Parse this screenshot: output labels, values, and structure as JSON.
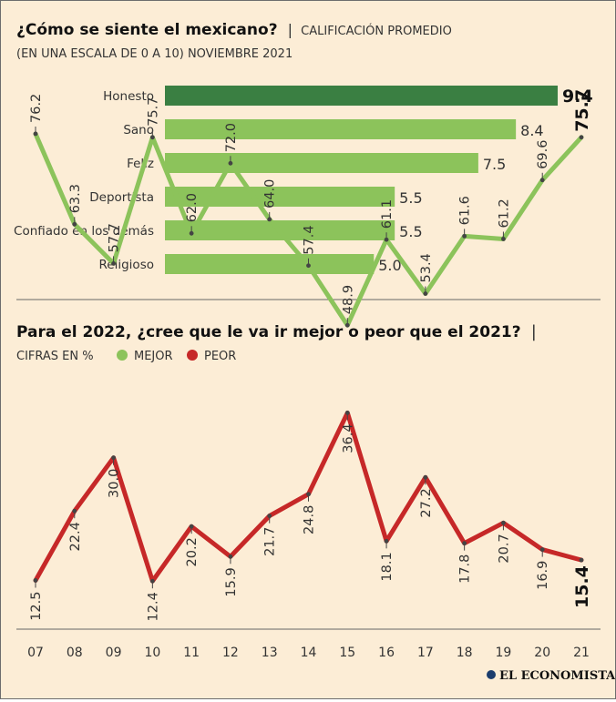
{
  "colors": {
    "background": "#fcedd6",
    "bar": "#8cc35b",
    "bar_highlight": "#3a7f42",
    "mejor": "#8cc35b",
    "peor": "#c62828",
    "marker": "#444444"
  },
  "logo": {
    "text": "EL ECONOMISTA"
  },
  "chart_data": [
    {
      "type": "bar",
      "orientation": "horizontal",
      "title": "¿Cómo se siente el mexicano?",
      "title_separator": "|",
      "subtitle": "CALIFICACIÓN PROMEDIO",
      "subtitle2": "(EN UNA ESCALA DE 0 A 10) NOVIEMBRE 2021",
      "categories": [
        "Honesto",
        "Sano",
        "Feliz",
        "Deportista",
        "Confiado en los demás",
        "Religioso"
      ],
      "values": [
        9.4,
        8.4,
        7.5,
        5.5,
        5.5,
        5.0
      ],
      "value_labels": [
        "9.4",
        "8.4",
        "7.5",
        "5.5",
        "5.5",
        "5.0"
      ],
      "highlight_index": 0,
      "xlim": [
        0,
        10
      ]
    },
    {
      "type": "line",
      "title": "Para el 2022, ¿cree que le va ir mejor o peor que el 2021?",
      "title_separator": "|",
      "subtitle": "CIFRAS EN %",
      "x": [
        "07",
        "08",
        "09",
        "10",
        "11",
        "12",
        "13",
        "14",
        "15",
        "16",
        "17",
        "18",
        "19",
        "20",
        "21"
      ],
      "ylim": [
        0,
        90
      ],
      "series": [
        {
          "name": "MEJOR",
          "values": [
            76.2,
            63.3,
            57.7,
            75.7,
            62.0,
            72.0,
            64.0,
            57.4,
            48.9,
            61.1,
            53.4,
            61.6,
            61.2,
            69.6,
            75.7
          ],
          "labels": [
            "76.2",
            "63.3",
            "57.7",
            "75.7",
            "62.0",
            "72.0",
            "64.0",
            "57.4",
            "48.9",
            "61.1",
            "53.4",
            "61.6",
            "61.2",
            "69.6",
            "75.7"
          ]
        },
        {
          "name": "PEOR",
          "values": [
            12.5,
            22.4,
            30.0,
            12.4,
            20.2,
            15.9,
            21.7,
            24.8,
            36.4,
            18.1,
            27.2,
            17.8,
            20.7,
            16.9,
            15.4
          ],
          "labels": [
            "12.5",
            "22.4",
            "30.0",
            "12.4",
            "20.2",
            "15.9",
            "21.7",
            "24.8",
            "36.4",
            "18.1",
            "27.2",
            "17.8",
            "20.7",
            "16.9",
            "15.4"
          ]
        }
      ]
    }
  ]
}
